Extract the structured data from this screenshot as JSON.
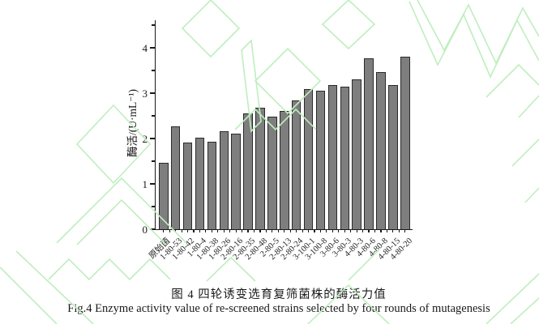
{
  "figure": {
    "caption_zh": "图 4  四轮诱变选育复筛菌株的酶活力值",
    "caption_en": "Fig.4 Enzyme activity value of re-screened strains selected by four rounds of mutagenesis"
  },
  "chart_data": {
    "type": "bar",
    "title": "",
    "xlabel": "",
    "ylabel": "酶活/(U·mL⁻¹)",
    "categories": [
      "原始菌",
      "1-80-53",
      "1-80-42",
      "1-80-4",
      "1-80-38",
      "1-80-26",
      "2-80-16",
      "2-80-35",
      "2-80-48",
      "2-80-5",
      "2-80-13",
      "2-80-24",
      "3-100-1",
      "3-100-8",
      "3-80-6",
      "3-80-3",
      "4-80-3",
      "4-80-6",
      "4-80-8",
      "4-80-15",
      "4-80-20"
    ],
    "values": [
      1.46,
      2.26,
      1.91,
      2.01,
      1.92,
      2.16,
      2.11,
      2.55,
      2.67,
      2.49,
      2.6,
      2.84,
      3.09,
      3.06,
      3.17,
      3.14,
      3.3,
      3.77,
      3.46,
      3.18,
      3.8
    ],
    "ylim": [
      0,
      4.6
    ],
    "yticks_major": [
      0,
      1,
      2,
      3,
      4
    ],
    "yticks_minor": [
      0.5,
      1.5,
      2.5,
      3.5,
      4.5
    ],
    "grid": false,
    "legend": null,
    "bar_color": "#7e7e7e",
    "bar_edge_color": "#2a2a2a",
    "axis_color": "#1a1a1a",
    "xlabel_rotation_deg": 45
  },
  "watermark_color": "#bfeebf"
}
